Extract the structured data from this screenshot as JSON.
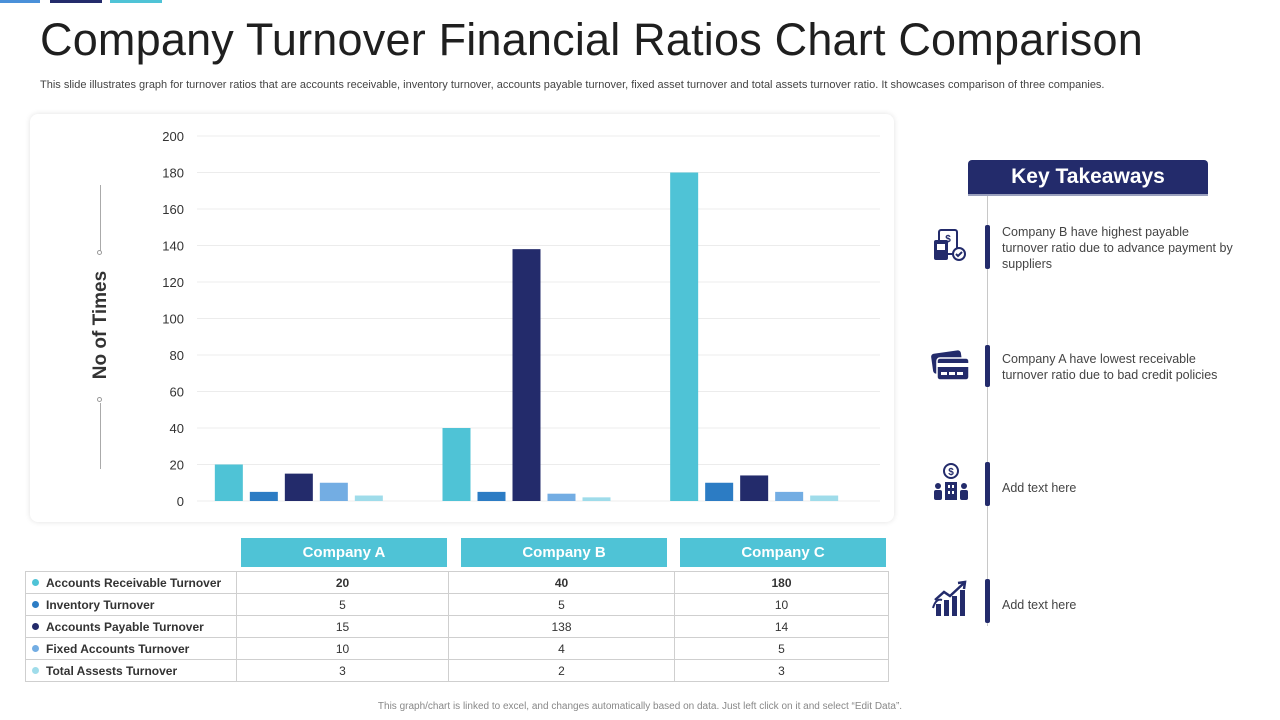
{
  "header": {
    "title": "Company Turnover Financial Ratios Chart Comparison",
    "subtitle": "This slide illustrates graph for turnover ratios that are accounts receivable, inventory turnover,  accounts payable turnover, fixed asset turnover and total assets turnover ratio. It showcases comparison of three companies."
  },
  "colors": {
    "navy": "#232b6b",
    "cyan": "#4fc3d6",
    "blue": "#2c7cc4",
    "light_blue": "#73ade3",
    "pale_cyan": "#9fdcea"
  },
  "chart_data": {
    "type": "bar",
    "categories": [
      "Company A",
      "Company B",
      "Company C"
    ],
    "ylabel": "No of Times",
    "xlabel": "",
    "ylim": [
      0,
      200
    ],
    "yticks": [
      0,
      20,
      40,
      60,
      80,
      100,
      120,
      140,
      160,
      180,
      200
    ],
    "grid": true,
    "series": [
      {
        "name": "Accounts Receivable Turnover",
        "color": "#4fc3d6",
        "values": [
          20,
          40,
          180
        ]
      },
      {
        "name": "Inventory Turnover",
        "color": "#2c7cc4",
        "values": [
          5,
          5,
          10
        ]
      },
      {
        "name": "Accounts Payable Turnover",
        "color": "#232b6b",
        "values": [
          15,
          138,
          14
        ]
      },
      {
        "name": "Fixed Accounts Turnover",
        "color": "#73ade3",
        "values": [
          10,
          4,
          5
        ]
      },
      {
        "name": "Total Assests Turnover",
        "color": "#9fdcea",
        "values": [
          3,
          2,
          3
        ]
      }
    ]
  },
  "table": {
    "headers": [
      "Company A",
      "Company B",
      "Company C"
    ],
    "rows": [
      {
        "label": "Accounts Receivable Turnover",
        "values": [
          "20",
          "40",
          "180"
        ]
      },
      {
        "label": "Inventory Turnover",
        "values": [
          "5",
          "5",
          "10"
        ]
      },
      {
        "label": "Accounts Payable Turnover",
        "values": [
          "15",
          "138",
          "14"
        ]
      },
      {
        "label": "Fixed Accounts Turnover",
        "values": [
          "10",
          "4",
          "5"
        ]
      },
      {
        "label": "Total Assests Turnover",
        "values": [
          "3",
          "2",
          "3"
        ]
      }
    ]
  },
  "takeaways": {
    "title": "Key Takeaways",
    "items": [
      {
        "icon": "payment-invoice-icon",
        "text": "Company B have highest payable turnover  ratio due to advance  payment by suppliers"
      },
      {
        "icon": "credit-card-icon",
        "text": "Company A have lowest receivable turnover  ratio due to bad credit policies"
      },
      {
        "icon": "business-finance-icon",
        "text": "Add text here"
      },
      {
        "icon": "growth-chart-icon",
        "text": "Add text here"
      }
    ]
  },
  "footer": {
    "note": "This graph/chart is linked to excel, and changes automatically based on data. Just left click on it and select “Edit Data”."
  }
}
